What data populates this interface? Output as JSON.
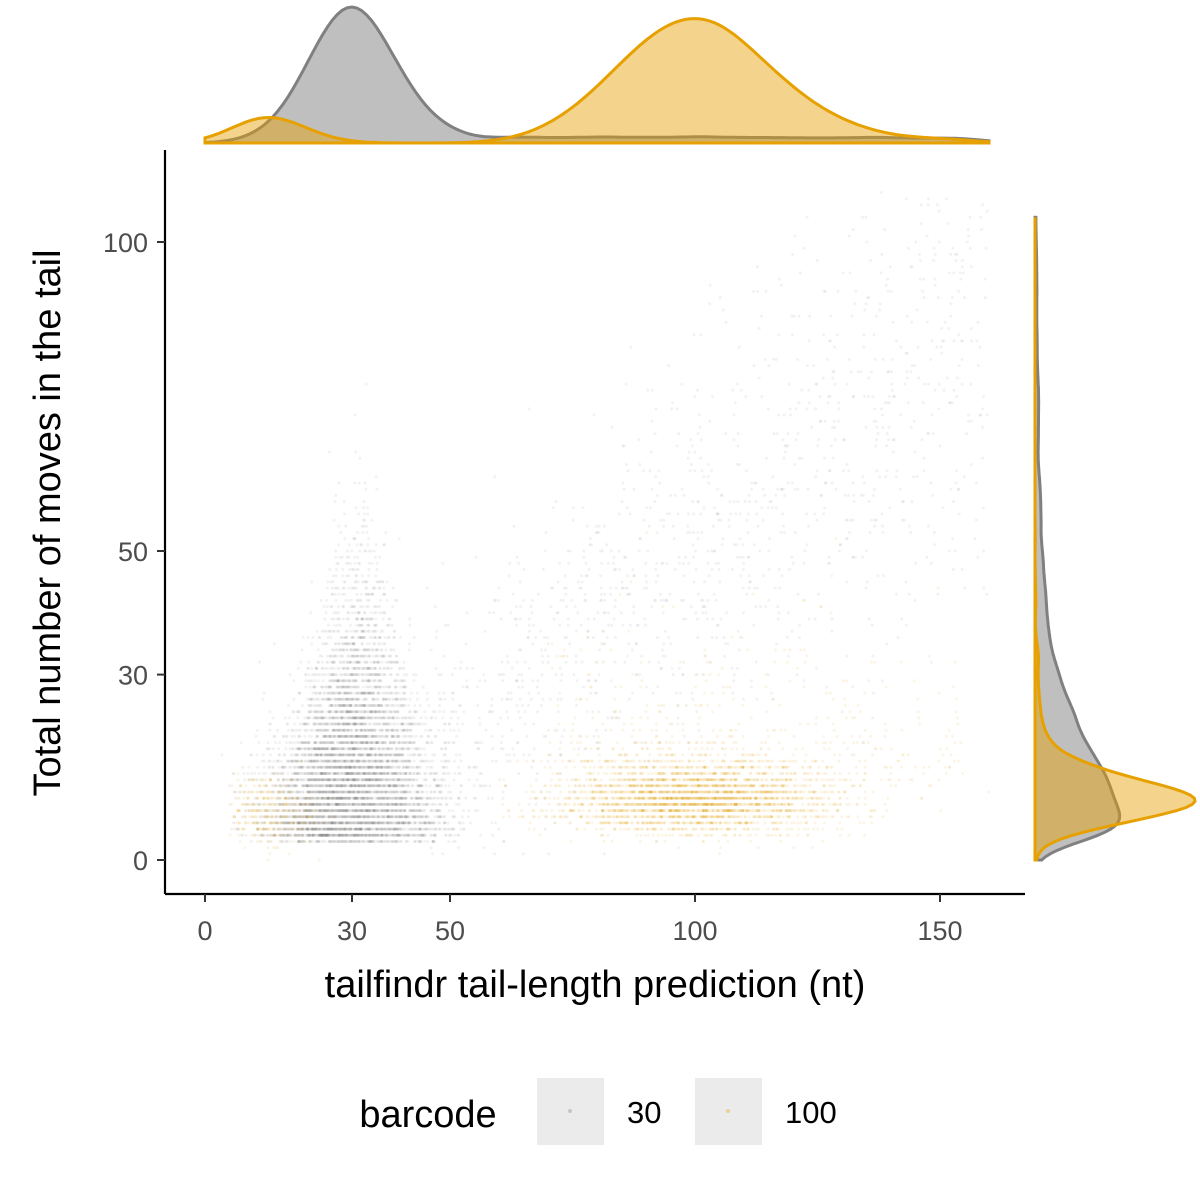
{
  "chart_data": {
    "type": "scatter",
    "subtype": "scatter with marginal density plots",
    "title": "",
    "xlabel": "tailfindr tail-length prediction (nt)",
    "ylabel": "Total number of moves in the tail",
    "xlim": [
      -6,
      170
    ],
    "ylim": [
      -6,
      115
    ],
    "x_ticks": [
      0,
      30,
      50,
      100,
      150
    ],
    "y_ticks": [
      0,
      30,
      50,
      100
    ],
    "grid": false,
    "legend": {
      "title": "barcode",
      "position": "bottom",
      "entries": [
        "30",
        "100"
      ]
    },
    "series": [
      {
        "name": "30",
        "color": "#808080",
        "point_alpha": 0.1,
        "n_points_approx": 9000,
        "x_range": [
          3,
          160
        ],
        "y_range": [
          0,
          108
        ],
        "main_cluster": {
          "x_center": 30,
          "y_center": 14,
          "x_spread": 8,
          "y_spread": 7
        },
        "diagonal_spread": {
          "x_from": 45,
          "x_to": 160,
          "y_from": 25,
          "y_to": 100
        },
        "density_x_peak": 30,
        "density_y_peak": 7
      },
      {
        "name": "100",
        "color": "#E6A000",
        "point_alpha": 0.1,
        "n_points_approx": 4000,
        "x_range": [
          5,
          160
        ],
        "y_range": [
          0,
          90
        ],
        "main_cluster": {
          "x_center": 100,
          "y_center": 7,
          "x_spread": 14,
          "y_spread": 3
        },
        "secondary_cluster": {
          "x_center": 12,
          "y_center": 8
        },
        "density_x_peak": 100,
        "density_y_peak": 6
      }
    ]
  }
}
